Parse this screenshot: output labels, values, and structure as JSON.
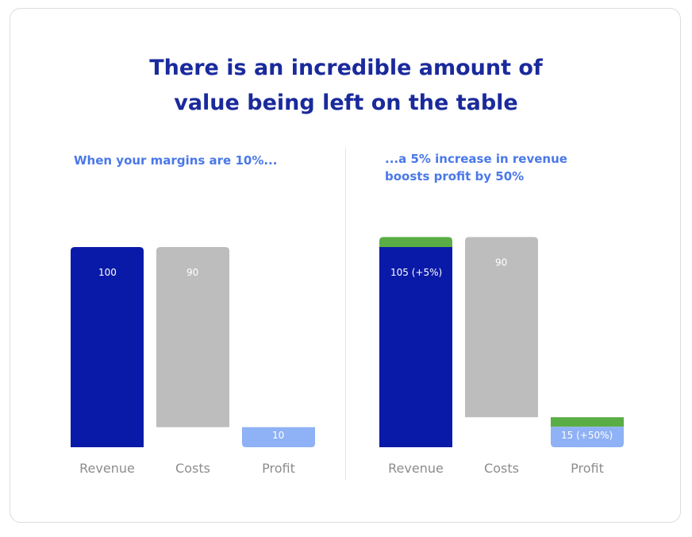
{
  "header": {
    "title_line1": "There is an incredible amount of",
    "title_line2": "value being left on the table"
  },
  "colors": {
    "revenue": "#0a1aa8",
    "costs": "#bdbdbd",
    "profit": "#8fb1f5",
    "increase": "#59ad44",
    "axis_label": "#8c8c8c",
    "title": "#1a2a9c",
    "subtitle": "#4a78e8"
  },
  "chart_data": [
    {
      "type": "bar",
      "subtitle": "When your margins are 10%...",
      "categories": [
        "Revenue",
        "Costs",
        "Profit"
      ],
      "values": [
        100,
        90,
        10
      ],
      "data_labels": [
        "100",
        "90",
        "10"
      ],
      "layout": "waterfall"
    },
    {
      "type": "bar",
      "subtitle_line1": "...a 5% increase in revenue",
      "subtitle_line2": "boosts profit by 50%",
      "categories": [
        "Revenue",
        "Costs",
        "Profit"
      ],
      "values": [
        105,
        90,
        15
      ],
      "increase": [
        5,
        0,
        5
      ],
      "data_labels": [
        "105 (+5%)",
        "90",
        "15 (+50%)"
      ],
      "layout": "waterfall"
    }
  ]
}
